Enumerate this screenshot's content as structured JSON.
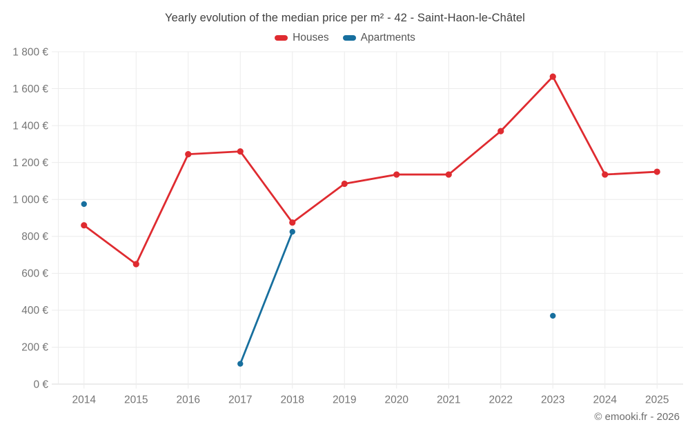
{
  "page": {
    "watermark": "© emooki.fr - 2026"
  },
  "chart_data": {
    "type": "line",
    "title": "Yearly evolution of the median price per m² - 42 - Saint-Haon-le-Châtel",
    "categories": [
      "2014",
      "2015",
      "2016",
      "2017",
      "2018",
      "2019",
      "2020",
      "2021",
      "2022",
      "2023",
      "2024",
      "2025"
    ],
    "series": [
      {
        "name": "Houses",
        "color": "#df2b30",
        "values": [
          860,
          650,
          1245,
          1260,
          875,
          1085,
          1135,
          1135,
          1370,
          1665,
          1135,
          1150
        ]
      },
      {
        "name": "Apartments",
        "color": "#176f9e",
        "values": [
          975,
          null,
          null,
          110,
          825,
          null,
          null,
          null,
          null,
          370,
          null,
          null
        ]
      }
    ],
    "ylim": [
      0,
      1800
    ],
    "ytick_step": 200,
    "y_tick_suffix": " €",
    "grid": true,
    "legend_position": "top",
    "colors": {
      "grid": "#ececec",
      "axis_line": "#d9d9d9",
      "axis_text": "#757575",
      "title_text": "#3f3f3f",
      "legend_text": "#565656",
      "watermark_text": "#6c6c6c"
    }
  }
}
